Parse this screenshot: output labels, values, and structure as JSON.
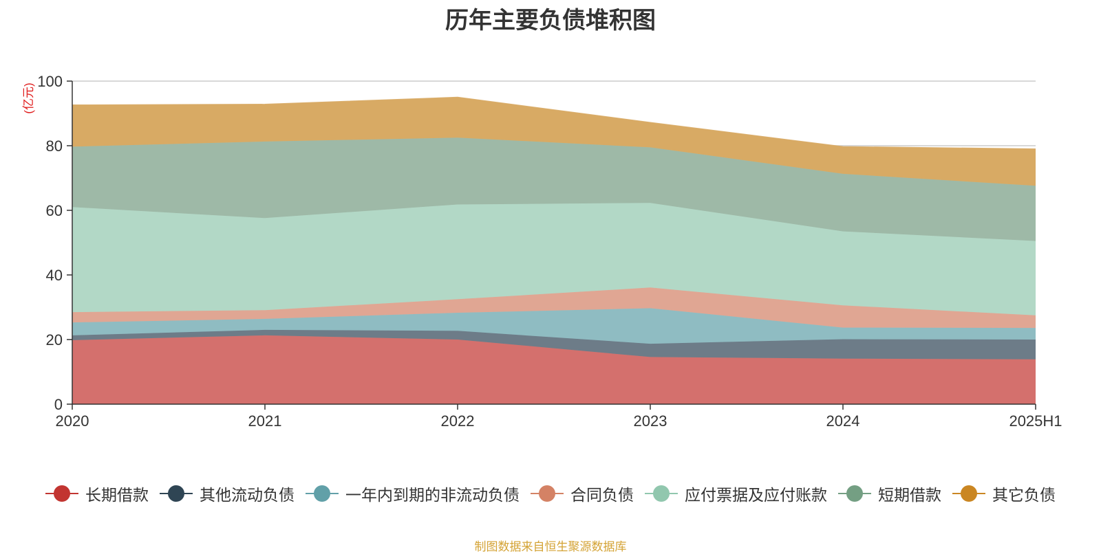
{
  "title": "历年主要负债堆积图",
  "source_note": "制图数据来自恒生聚源数据库",
  "chart_data": {
    "type": "area",
    "stacked": true,
    "title": "历年主要负债堆积图",
    "xlabel": "",
    "ylabel": "(亿元)",
    "categories": [
      "2020",
      "2021",
      "2022",
      "2023",
      "2024",
      "2025H1"
    ],
    "ylim": [
      0,
      100
    ],
    "yticks": [
      0,
      20,
      40,
      60,
      80,
      100
    ],
    "grid": true,
    "legend_position": "bottom",
    "series": [
      {
        "name": "长期借款",
        "color": "#c23531",
        "fill": "#d4706d",
        "values": [
          19.8,
          21.3,
          20.0,
          14.6,
          14.1,
          13.9
        ]
      },
      {
        "name": "其他流动负债",
        "color": "#2f4554",
        "fill": "#6d7c88",
        "values": [
          1.5,
          1.7,
          2.7,
          4.1,
          6.0,
          6.1
        ]
      },
      {
        "name": "一年内到期的非流动负债",
        "color": "#61a0a8",
        "fill": "#8fbcc2",
        "values": [
          4.0,
          3.4,
          5.6,
          11.0,
          3.6,
          3.6
        ]
      },
      {
        "name": "合同负债",
        "color": "#d48265",
        "fill": "#e0a693",
        "values": [
          3.2,
          2.7,
          4.2,
          6.4,
          6.9,
          3.9
        ]
      },
      {
        "name": "应付票据及应付账款",
        "color": "#91c7ae",
        "fill": "#b2d8c6",
        "values": [
          32.5,
          28.5,
          29.3,
          26.2,
          22.9,
          23.0
        ]
      },
      {
        "name": "短期借款",
        "color": "#749f83",
        "fill": "#9eb9a7",
        "values": [
          18.7,
          23.7,
          20.7,
          17.2,
          17.8,
          17.1
        ]
      },
      {
        "name": "其它负债",
        "color": "#ca8622",
        "fill": "#d8aa64",
        "values": [
          12.9,
          11.5,
          12.5,
          7.7,
          8.4,
          11.4
        ]
      }
    ]
  }
}
